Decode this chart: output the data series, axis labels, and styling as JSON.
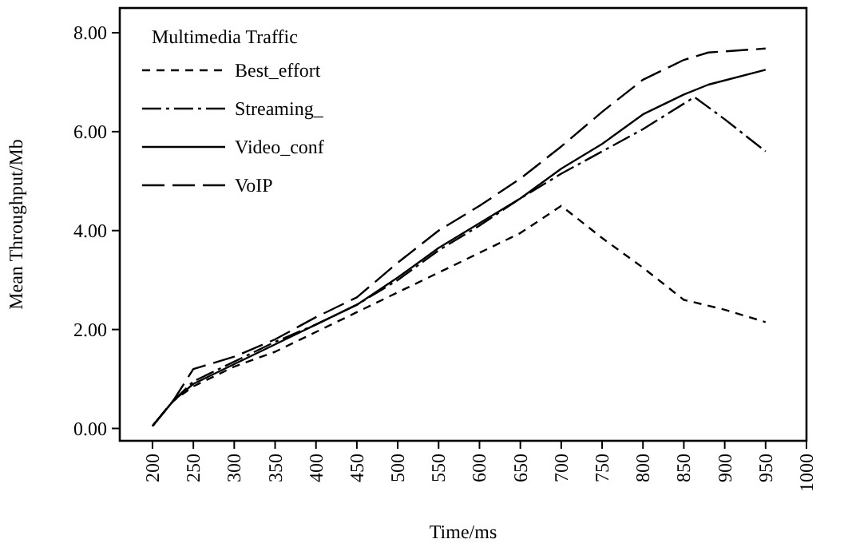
{
  "chart_data": {
    "type": "line",
    "xlabel": "Time/ms",
    "ylabel": "Mean Throughput/Mb",
    "legend_title": "Multimedia Traffic",
    "legend": "top left",
    "grid": false,
    "marker": "none",
    "xlim": [
      160,
      1000
    ],
    "xticks": [
      200,
      250,
      300,
      350,
      400,
      450,
      500,
      550,
      600,
      650,
      700,
      750,
      800,
      850,
      900,
      950,
      1000
    ],
    "ylim": [
      -0.25,
      8.5
    ],
    "yticks": [
      {
        "value": 0,
        "label": "0.00"
      },
      {
        "value": 2,
        "label": "2.00"
      },
      {
        "value": 4,
        "label": "4.00"
      },
      {
        "value": 6,
        "label": "6.00"
      },
      {
        "value": 8,
        "label": "8.00"
      }
    ],
    "series": [
      {
        "name": "Best_effort",
        "color": "#000000",
        "line_style": "dashed",
        "x": [
          200,
          225,
          250,
          300,
          350,
          400,
          450,
          500,
          550,
          600,
          650,
          700,
          750,
          800,
          850,
          900,
          950
        ],
        "values": [
          0.05,
          0.55,
          0.85,
          1.25,
          1.55,
          1.95,
          2.35,
          2.75,
          3.15,
          3.55,
          3.95,
          4.5,
          3.85,
          3.25,
          2.6,
          2.4,
          2.15
        ]
      },
      {
        "name": "Streaming_",
        "color": "#000000",
        "line_style": "dashdot",
        "x": [
          200,
          225,
          250,
          300,
          350,
          400,
          450,
          500,
          550,
          600,
          650,
          700,
          750,
          800,
          863,
          900,
          950
        ],
        "values": [
          0.05,
          0.55,
          0.95,
          1.35,
          1.75,
          2.1,
          2.5,
          3.0,
          3.6,
          4.1,
          4.65,
          5.15,
          5.6,
          6.05,
          6.7,
          6.25,
          5.6
        ]
      },
      {
        "name": "Video_conf",
        "color": "#000000",
        "line_style": "solid",
        "x": [
          200,
          225,
          250,
          300,
          350,
          400,
          450,
          500,
          550,
          600,
          650,
          700,
          750,
          800,
          850,
          880,
          950
        ],
        "values": [
          0.05,
          0.55,
          0.9,
          1.3,
          1.7,
          2.1,
          2.5,
          3.05,
          3.65,
          4.15,
          4.65,
          5.25,
          5.75,
          6.35,
          6.75,
          6.95,
          7.25
        ]
      },
      {
        "name": "VoIP",
        "color": "#000000",
        "line_style": "longdash",
        "x": [
          200,
          225,
          250,
          300,
          350,
          400,
          450,
          500,
          550,
          600,
          650,
          700,
          750,
          800,
          850,
          880,
          950
        ],
        "values": [
          0.05,
          0.55,
          1.2,
          1.45,
          1.8,
          2.25,
          2.65,
          3.35,
          4.0,
          4.5,
          5.05,
          5.7,
          6.4,
          7.05,
          7.45,
          7.6,
          7.68
        ]
      }
    ]
  }
}
